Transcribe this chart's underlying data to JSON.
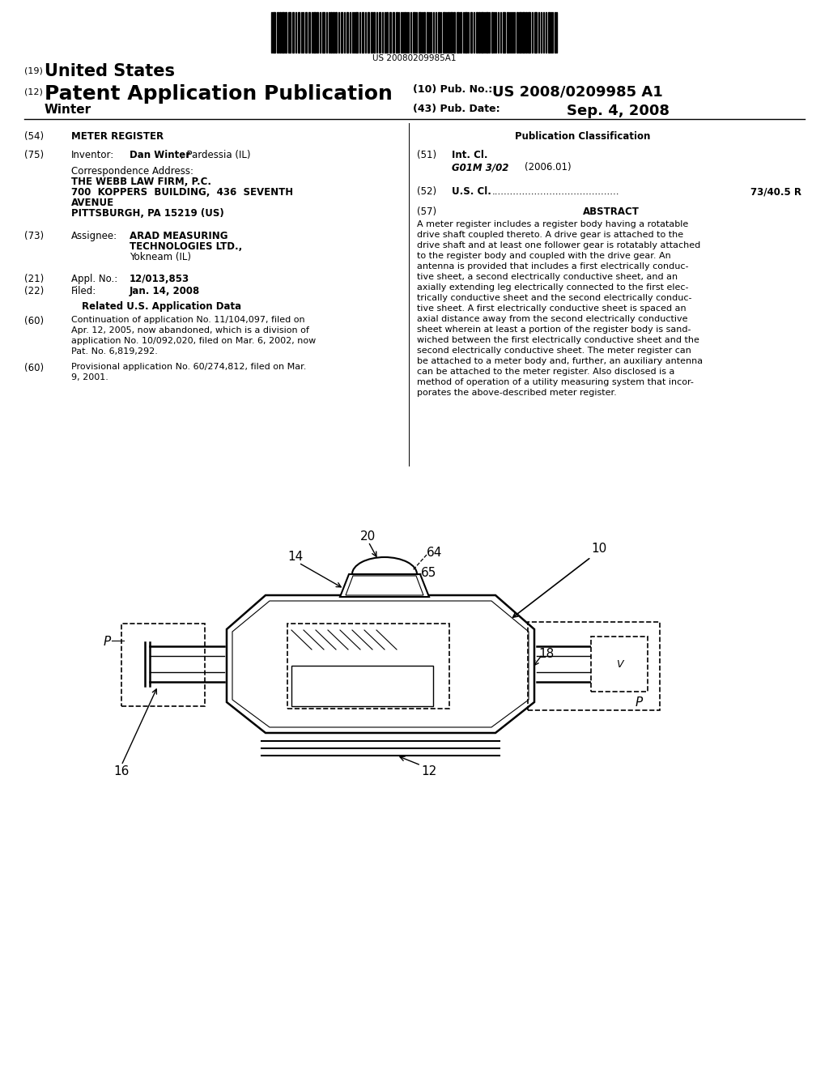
{
  "bg_color": "#ffffff",
  "barcode_text": "US 20080209985A1",
  "title_19_prefix": "(19)",
  "title_19_main": "United States",
  "title_12_prefix": "(12)",
  "title_12_main": "Patent Application Publication",
  "title_10_label": "(10) Pub. No.:",
  "title_10_value": "US 2008/0209985 A1",
  "title_43_label": "(43) Pub. Date:",
  "title_43_value": "Sep. 4, 2008",
  "inventor_surname": "Winter",
  "field_54_label": "(54)",
  "field_54_value": "METER REGISTER",
  "field_75_label": "(75)",
  "field_75_key": "Inventor:",
  "field_75_bold": "Dan Winter",
  "field_75_rest": ", Pardessia (IL)",
  "corr_label": "Correspondence Address:",
  "corr_line1": "THE WEBB LAW FIRM, P.C.",
  "corr_line2": "700  KOPPERS  BUILDING,  436  SEVENTH",
  "corr_line3": "AVENUE",
  "corr_line4": "PITTSBURGH, PA 15219 (US)",
  "field_73_label": "(73)",
  "field_73_key": "Assignee:",
  "field_73_value1": "ARAD MEASURING",
  "field_73_value2": "TECHNOLOGIES LTD.,",
  "field_73_value3": "Yokneam (IL)",
  "field_21_label": "(21)",
  "field_21_key": "Appl. No.:",
  "field_21_value": "12/013,853",
  "field_22_label": "(22)",
  "field_22_key": "Filed:",
  "field_22_value": "Jan. 14, 2008",
  "related_header": "Related U.S. Application Data",
  "field_60a_label": "(60)",
  "field_60a_lines": [
    "Continuation of application No. 11/104,097, filed on",
    "Apr. 12, 2005, now abandoned, which is a division of",
    "application No. 10/092,020, filed on Mar. 6, 2002, now",
    "Pat. No. 6,819,292."
  ],
  "field_60b_label": "(60)",
  "field_60b_lines": [
    "Provisional application No. 60/274,812, filed on Mar.",
    "9, 2001."
  ],
  "pub_class_header": "Publication Classification",
  "field_51_label": "(51)",
  "field_51_key": "Int. Cl.",
  "field_51_sub": "G01M 3/02",
  "field_51_year": "(2006.01)",
  "field_52_label": "(52)",
  "field_52_key": "U.S. Cl.",
  "field_52_value": "73/40.5 R",
  "field_57_label": "(57)",
  "field_57_key": "ABSTRACT",
  "abstract_lines": [
    "A meter register includes a register body having a rotatable",
    "drive shaft coupled thereto. A drive gear is attached to the",
    "drive shaft and at least one follower gear is rotatably attached",
    "to the register body and coupled with the drive gear. An",
    "antenna is provided that includes a first electrically conduc-",
    "tive sheet, a second electrically conductive sheet, and an",
    "axially extending leg electrically connected to the first elec-",
    "trically conductive sheet and the second electrically conduc-",
    "tive sheet. A first electrically conductive sheet is spaced an",
    "axial distance away from the second electrically conductive",
    "sheet wherein at least a portion of the register body is sand-",
    "wiched between the first electrically conductive sheet and the",
    "second electrically conductive sheet. The meter register can",
    "be attached to a meter body and, further, an auxiliary antenna",
    "can be attached to the meter register. Also disclosed is a",
    "method of operation of a utility measuring system that incor-",
    "porates the above-described meter register."
  ]
}
